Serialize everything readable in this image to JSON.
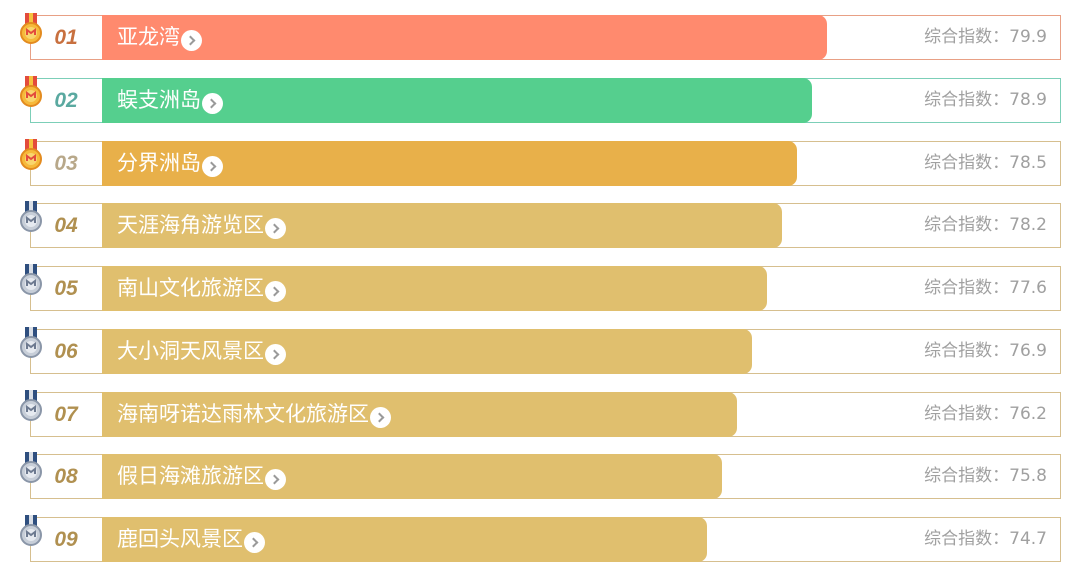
{
  "score_label": "综合指数：",
  "colors": {
    "rank1": "#ff8a6e",
    "rank2": "#55cf8e",
    "rank3": "#e8b04a",
    "rest": "#e0bf6e",
    "rank1_text": "#c8703f",
    "rank2_text": "#5aa9a0",
    "rank3_text": "#b8a88a",
    "rest_text": "#b09050"
  },
  "items": [
    {
      "rank": "01",
      "name": "亚龙湾",
      "score": "79.9",
      "medal": "gold-medal-icon"
    },
    {
      "rank": "02",
      "name": "蜈支洲岛",
      "score": "78.9",
      "medal": "gold-medal-icon"
    },
    {
      "rank": "03",
      "name": "分界洲岛",
      "score": "78.5",
      "medal": "gold-medal-icon"
    },
    {
      "rank": "04",
      "name": "天涯海角游览区",
      "score": "78.2",
      "medal": "silver-medal-icon"
    },
    {
      "rank": "05",
      "name": "南山文化旅游区",
      "score": "77.6",
      "medal": "silver-medal-icon"
    },
    {
      "rank": "06",
      "name": "大小洞天风景区",
      "score": "76.9",
      "medal": "silver-medal-icon"
    },
    {
      "rank": "07",
      "name": "海南呀诺达雨林文化旅游区",
      "score": "76.2",
      "medal": "silver-medal-icon"
    },
    {
      "rank": "08",
      "name": "假日海滩旅游区",
      "score": "75.8",
      "medal": "silver-medal-icon"
    },
    {
      "rank": "09",
      "name": "鹿回头风景区",
      "score": "74.7",
      "medal": "silver-medal-icon"
    }
  ]
}
